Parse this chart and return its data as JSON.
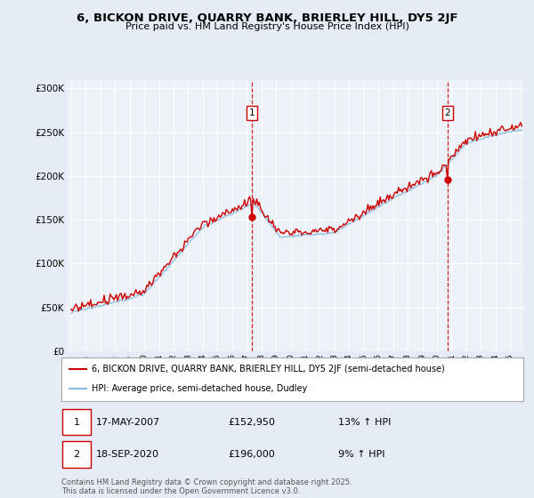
{
  "title": "6, BICKON DRIVE, QUARRY BANK, BRIERLEY HILL, DY5 2JF",
  "subtitle": "Price paid vs. HM Land Registry's House Price Index (HPI)",
  "bg_color": "#e6ecf5",
  "plot_bg_color": "#edf1f8",
  "red_color": "#cc0000",
  "blue_color": "#88bbdd",
  "annotation1_date": "17-MAY-2007",
  "annotation1_price": 152950,
  "annotation1_hpi": "13% ↑ HPI",
  "annotation2_date": "18-SEP-2020",
  "annotation2_price": 196000,
  "annotation2_hpi": "9% ↑ HPI",
  "legend_label_red": "6, BICKON DRIVE, QUARRY BANK, BRIERLEY HILL, DY5 2JF (semi-detached house)",
  "legend_label_blue": "HPI: Average price, semi-detached house, Dudley",
  "footer": "Contains HM Land Registry data © Crown copyright and database right 2025.\nThis data is licensed under the Open Government Licence v3.0.",
  "ylim": [
    0,
    310000
  ],
  "yticks": [
    0,
    50000,
    100000,
    150000,
    200000,
    250000,
    300000
  ],
  "ytick_labels": [
    "£0",
    "£50K",
    "£100K",
    "£150K",
    "£200K",
    "£250K",
    "£300K"
  ],
  "year_start": 1995,
  "year_end": 2025
}
